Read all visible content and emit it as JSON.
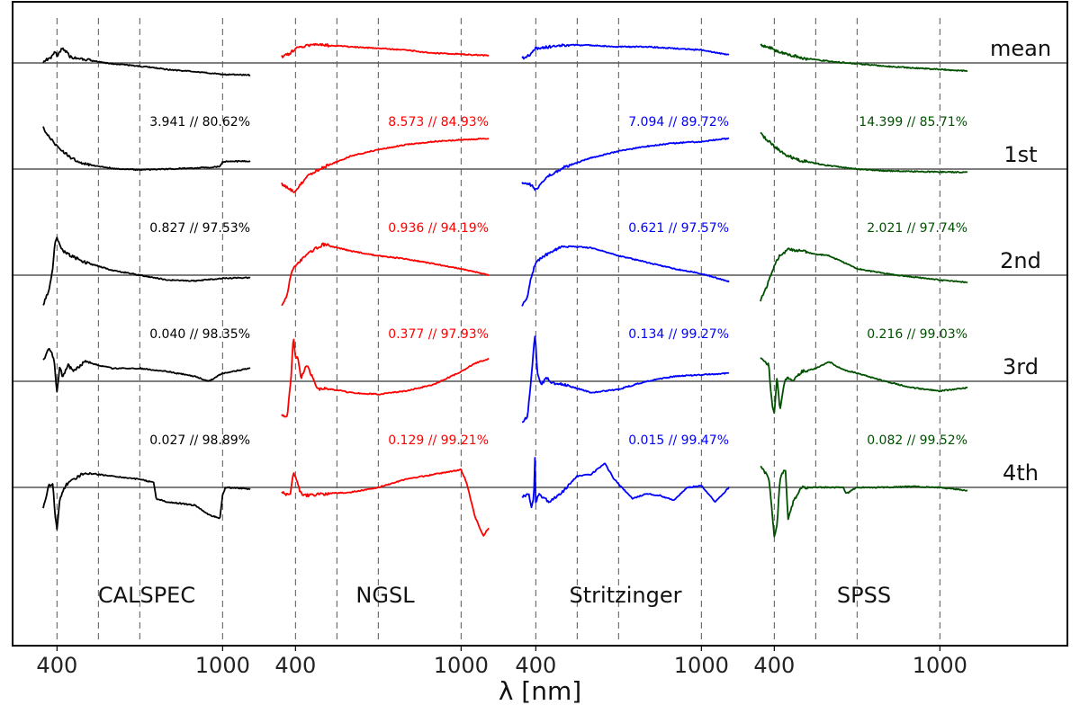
{
  "chart_data": {
    "type": "line",
    "title": "",
    "xlabel": "λ [nm]",
    "ylabel": "",
    "grid": true,
    "x_ticks_per_panel": [
      "400",
      "1000"
    ],
    "rows": [
      "mean",
      "1st",
      "2nd",
      "3rd",
      "4th"
    ],
    "panels": [
      {
        "name": "CALSPEC",
        "color": "#000000",
        "xlim": [
          350,
          1100
        ],
        "stats": [
          "3.941 // 80.62%",
          "0.827 // 97.53%",
          "0.040 // 98.35%",
          "0.027 // 98.89%"
        ]
      },
      {
        "name": "NGSL",
        "color": "#ff0000",
        "xlim": [
          350,
          1100
        ],
        "stats": [
          "8.573 // 84.93%",
          "0.936 // 94.19%",
          "0.377 // 97.93%",
          "0.129 // 99.21%"
        ]
      },
      {
        "name": "Stritzinger",
        "color": "#0000ff",
        "xlim": [
          350,
          1100
        ],
        "stats": [
          "7.094 // 89.72%",
          "0.621 // 97.57%",
          "0.134 // 99.27%",
          "0.015 // 99.47%"
        ]
      },
      {
        "name": "SPSS",
        "color": "#005000",
        "xlim": [
          350,
          1100
        ],
        "stats": [
          "14.399 // 85.71%",
          "2.021 // 97.74%",
          "0.216 // 99.03%",
          "0.082 // 99.52%"
        ]
      }
    ],
    "series_nodes": [
      [
        [
          [
            350,
            0.1
          ],
          [
            380,
            0.35
          ],
          [
            392,
            0.75
          ],
          [
            400,
            0.4
          ],
          [
            420,
            0.95
          ],
          [
            450,
            0.35
          ],
          [
            500,
            0.2
          ],
          [
            600,
            -0.05
          ],
          [
            700,
            -0.2
          ],
          [
            800,
            -0.4
          ],
          [
            900,
            -0.55
          ],
          [
            1000,
            -0.7
          ],
          [
            1100,
            -0.75
          ]
        ],
        [
          [
            350,
            2.55
          ],
          [
            380,
            1.8
          ],
          [
            400,
            1.4
          ],
          [
            450,
            0.7
          ],
          [
            500,
            0.3
          ],
          [
            600,
            0.05
          ],
          [
            700,
            -0.05
          ],
          [
            800,
            0.0
          ],
          [
            950,
            0.1
          ],
          [
            990,
            0.15
          ],
          [
            1000,
            0.45
          ],
          [
            1100,
            0.5
          ]
        ],
        [
          [
            350,
            -1.8
          ],
          [
            370,
            -1.0
          ],
          [
            385,
            0.5
          ],
          [
            392,
            2.0
          ],
          [
            400,
            2.25
          ],
          [
            415,
            1.6
          ],
          [
            430,
            1.4
          ],
          [
            450,
            1.2
          ],
          [
            500,
            0.8
          ],
          [
            600,
            0.3
          ],
          [
            700,
            0.0
          ],
          [
            800,
            -0.3
          ],
          [
            900,
            -0.35
          ],
          [
            1000,
            -0.2
          ],
          [
            1100,
            -0.15
          ]
        ],
        [
          [
            350,
            1.3
          ],
          [
            370,
            2.0
          ],
          [
            380,
            1.8
          ],
          [
            390,
            1.2
          ],
          [
            400,
            -0.7
          ],
          [
            410,
            1.0
          ],
          [
            420,
            0.2
          ],
          [
            440,
            1.0
          ],
          [
            460,
            0.6
          ],
          [
            500,
            1.2
          ],
          [
            600,
            0.8
          ],
          [
            700,
            0.8
          ],
          [
            800,
            0.6
          ],
          [
            900,
            0.3
          ],
          [
            950,
            0.0
          ],
          [
            1000,
            0.5
          ],
          [
            1100,
            0.8
          ]
        ],
        [
          [
            350,
            -1.3
          ],
          [
            370,
            0.1
          ],
          [
            385,
            0.2
          ],
          [
            392,
            -1.5
          ],
          [
            400,
            -2.6
          ],
          [
            410,
            -0.8
          ],
          [
            430,
            0.1
          ],
          [
            460,
            0.5
          ],
          [
            500,
            0.9
          ],
          [
            600,
            0.7
          ],
          [
            700,
            0.5
          ],
          [
            750,
            0.3
          ],
          [
            760,
            -0.7
          ],
          [
            800,
            -0.9
          ],
          [
            900,
            -1.1
          ],
          [
            950,
            -1.7
          ],
          [
            990,
            -1.9
          ],
          [
            1000,
            -0.5
          ],
          [
            1010,
            0.0
          ],
          [
            1100,
            -0.1
          ]
        ]
      ],
      [
        [
          [
            350,
            0.4
          ],
          [
            380,
            0.6
          ],
          [
            400,
            0.9
          ],
          [
            450,
            1.1
          ],
          [
            500,
            1.1
          ],
          [
            600,
            1.0
          ],
          [
            700,
            0.9
          ],
          [
            800,
            0.8
          ],
          [
            900,
            0.6
          ],
          [
            1000,
            0.55
          ],
          [
            1100,
            0.45
          ]
        ],
        [
          [
            350,
            -0.9
          ],
          [
            390,
            -1.35
          ],
          [
            400,
            -1.4
          ],
          [
            420,
            -0.9
          ],
          [
            450,
            -0.35
          ],
          [
            500,
            0.1
          ],
          [
            600,
            0.8
          ],
          [
            700,
            1.2
          ],
          [
            800,
            1.5
          ],
          [
            900,
            1.7
          ],
          [
            1000,
            1.8
          ],
          [
            1100,
            1.9
          ]
        ],
        [
          [
            350,
            -1.9
          ],
          [
            370,
            -1.2
          ],
          [
            385,
            0.2
          ],
          [
            400,
            0.6
          ],
          [
            450,
            1.4
          ],
          [
            500,
            1.9
          ],
          [
            600,
            1.5
          ],
          [
            700,
            1.2
          ],
          [
            800,
            1.0
          ],
          [
            900,
            0.7
          ],
          [
            1000,
            0.4
          ],
          [
            1100,
            0.0
          ]
        ],
        [
          [
            350,
            -2.1
          ],
          [
            370,
            -2.2
          ],
          [
            385,
            0.5
          ],
          [
            392,
            2.8
          ],
          [
            400,
            1.5
          ],
          [
            410,
            1.4
          ],
          [
            420,
            0.2
          ],
          [
            440,
            1.0
          ],
          [
            460,
            0.3
          ],
          [
            480,
            -0.5
          ],
          [
            500,
            -0.4
          ],
          [
            600,
            -0.7
          ],
          [
            700,
            -0.8
          ],
          [
            800,
            -0.6
          ],
          [
            900,
            -0.2
          ],
          [
            1000,
            0.6
          ],
          [
            1050,
            1.1
          ],
          [
            1100,
            1.4
          ]
        ],
        [
          [
            350,
            -0.3
          ],
          [
            380,
            -0.5
          ],
          [
            392,
            0.9
          ],
          [
            400,
            0.6
          ],
          [
            410,
            0.1
          ],
          [
            420,
            -0.4
          ],
          [
            440,
            -0.5
          ],
          [
            500,
            -0.4
          ],
          [
            600,
            -0.3
          ],
          [
            700,
            0.0
          ],
          [
            800,
            0.5
          ],
          [
            900,
            0.8
          ],
          [
            1000,
            1.1
          ],
          [
            1020,
            0.3
          ],
          [
            1050,
            -1.8
          ],
          [
            1080,
            -3.0
          ],
          [
            1100,
            -2.5
          ]
        ]
      ],
      [
        [
          [
            350,
            0.3
          ],
          [
            380,
            0.5
          ],
          [
            400,
            0.9
          ],
          [
            450,
            1.0
          ],
          [
            500,
            1.1
          ],
          [
            600,
            1.1
          ],
          [
            700,
            1.0
          ],
          [
            800,
            1.0
          ],
          [
            900,
            0.9
          ],
          [
            1000,
            0.8
          ],
          [
            1100,
            0.5
          ]
        ],
        [
          [
            350,
            -0.8
          ],
          [
            385,
            -1.0
          ],
          [
            400,
            -1.3
          ],
          [
            420,
            -0.9
          ],
          [
            450,
            -0.4
          ],
          [
            500,
            0.1
          ],
          [
            600,
            0.7
          ],
          [
            700,
            1.1
          ],
          [
            800,
            1.4
          ],
          [
            900,
            1.6
          ],
          [
            1000,
            1.7
          ],
          [
            1100,
            1.9
          ]
        ],
        [
          [
            350,
            -1.9
          ],
          [
            370,
            -1.3
          ],
          [
            385,
            0.0
          ],
          [
            400,
            0.8
          ],
          [
            450,
            1.4
          ],
          [
            500,
            1.8
          ],
          [
            600,
            1.7
          ],
          [
            700,
            1.2
          ],
          [
            800,
            0.8
          ],
          [
            900,
            0.4
          ],
          [
            1000,
            0.1
          ],
          [
            1100,
            -0.4
          ]
        ],
        [
          [
            350,
            -2.5
          ],
          [
            370,
            -2.2
          ],
          [
            385,
            0.5
          ],
          [
            392,
            2.0
          ],
          [
            398,
            3.0
          ],
          [
            405,
            0.5
          ],
          [
            420,
            -0.2
          ],
          [
            440,
            0.2
          ],
          [
            460,
            -0.1
          ],
          [
            500,
            -0.2
          ],
          [
            600,
            -0.7
          ],
          [
            700,
            -0.5
          ],
          [
            800,
            0.0
          ],
          [
            900,
            0.3
          ],
          [
            1000,
            0.4
          ],
          [
            1100,
            0.5
          ]
        ],
        [
          [
            350,
            -0.6
          ],
          [
            375,
            -0.4
          ],
          [
            385,
            -1.3
          ],
          [
            393,
            -0.5
          ],
          [
            398,
            2.5
          ],
          [
            400,
            -0.9
          ],
          [
            410,
            -0.4
          ],
          [
            450,
            -0.9
          ],
          [
            500,
            -0.2
          ],
          [
            550,
            0.7
          ],
          [
            600,
            0.8
          ],
          [
            650,
            1.5
          ],
          [
            680,
            0.6
          ],
          [
            700,
            0.2
          ],
          [
            750,
            -0.7
          ],
          [
            800,
            -0.4
          ],
          [
            850,
            -0.5
          ],
          [
            900,
            -0.8
          ],
          [
            950,
            0.0
          ],
          [
            1000,
            0.1
          ],
          [
            1050,
            -0.9
          ],
          [
            1100,
            0.0
          ]
        ]
      ],
      [
        [
          [
            350,
            1.1
          ],
          [
            380,
            1.0
          ],
          [
            400,
            0.8
          ],
          [
            450,
            0.55
          ],
          [
            500,
            0.3
          ],
          [
            600,
            0.1
          ],
          [
            700,
            -0.05
          ],
          [
            800,
            -0.2
          ],
          [
            900,
            -0.3
          ],
          [
            1000,
            -0.4
          ],
          [
            1100,
            -0.5
          ]
        ],
        [
          [
            350,
            2.2
          ],
          [
            380,
            1.7
          ],
          [
            400,
            1.4
          ],
          [
            450,
            0.8
          ],
          [
            500,
            0.5
          ],
          [
            600,
            0.2
          ],
          [
            700,
            0.0
          ],
          [
            800,
            -0.1
          ],
          [
            900,
            -0.15
          ],
          [
            1000,
            -0.18
          ],
          [
            1100,
            -0.2
          ]
        ],
        [
          [
            350,
            -1.6
          ],
          [
            370,
            -0.8
          ],
          [
            400,
            0.6
          ],
          [
            420,
            1.2
          ],
          [
            450,
            1.6
          ],
          [
            500,
            1.5
          ],
          [
            550,
            1.3
          ],
          [
            600,
            1.2
          ],
          [
            650,
            0.8
          ],
          [
            700,
            0.4
          ],
          [
            800,
            0.1
          ],
          [
            900,
            -0.1
          ],
          [
            1000,
            -0.3
          ],
          [
            1100,
            -0.45
          ]
        ],
        [
          [
            350,
            1.5
          ],
          [
            380,
            1.0
          ],
          [
            392,
            -1.5
          ],
          [
            400,
            -2.0
          ],
          [
            410,
            0.3
          ],
          [
            420,
            -1.8
          ],
          [
            440,
            0.2
          ],
          [
            470,
            0.1
          ],
          [
            500,
            0.6
          ],
          [
            550,
            0.8
          ],
          [
            600,
            1.2
          ],
          [
            650,
            0.7
          ],
          [
            700,
            0.5
          ],
          [
            800,
            0.0
          ],
          [
            900,
            -0.4
          ],
          [
            1000,
            -0.6
          ],
          [
            1100,
            -0.4
          ]
        ],
        [
          [
            350,
            1.3
          ],
          [
            380,
            0.6
          ],
          [
            392,
            -1.5
          ],
          [
            400,
            -3.0
          ],
          [
            410,
            -2.4
          ],
          [
            420,
            0.5
          ],
          [
            440,
            1.2
          ],
          [
            450,
            -2.0
          ],
          [
            470,
            -0.8
          ],
          [
            500,
            0.0
          ],
          [
            600,
            0.0
          ],
          [
            650,
            0.0
          ],
          [
            660,
            -0.4
          ],
          [
            700,
            0.0
          ],
          [
            800,
            0.0
          ],
          [
            900,
            0.05
          ],
          [
            1000,
            0.0
          ],
          [
            1100,
            -0.2
          ]
        ]
      ]
    ],
    "series_note": "traces are approximate reconstructions; y in arbitrary normalized units relative to each row's horizontal baseline"
  }
}
